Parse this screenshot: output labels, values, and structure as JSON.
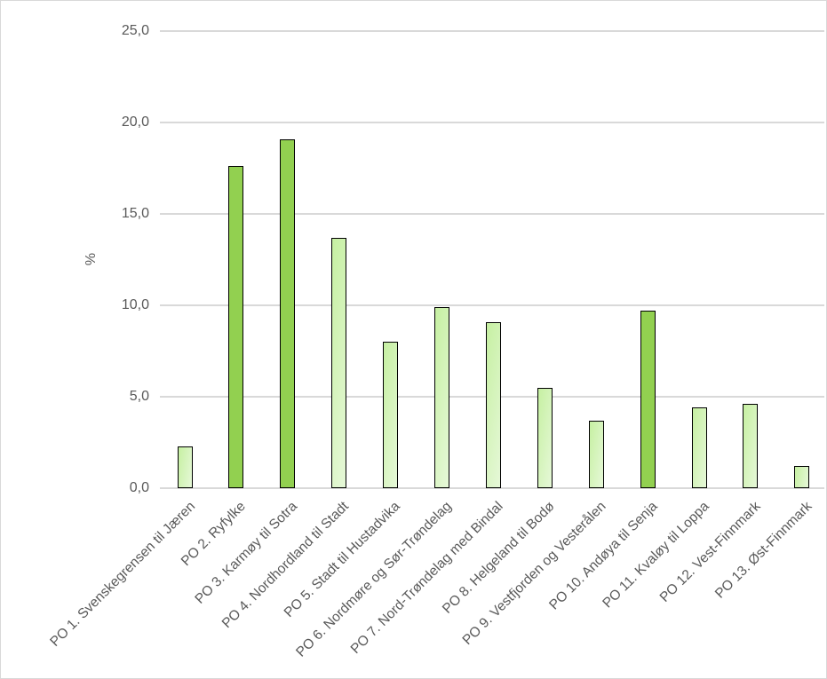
{
  "chart_data": {
    "type": "bar",
    "title": "",
    "xlabel": "",
    "ylabel": "%",
    "ylim": [
      0,
      25
    ],
    "yticks": [
      "0,0",
      "5,0",
      "10,0",
      "15,0",
      "20,0",
      "25,0"
    ],
    "grid": true,
    "legend": null,
    "categories": [
      "PO 1. Svenskegrensen til Jæren",
      "PO 2. Ryfylke",
      "PO 3. Karmøy til Sotra",
      "PO 4. Nordhordland til Stadt",
      "PO 5. Stadt til Hustadvika",
      "PO 6. Nordmøre og Sør-Trøndelag",
      "PO 7. Nord-Trøndelag med Bindal",
      "PO 8. Helgeland til Bodø",
      "PO 9. Vestfjorden og Vesterålen",
      "PO 10. Andøya til Senja",
      "PO 11. Kvaløy til Loppa",
      "PO 12. Vest-Finnmark",
      "PO 13. Øst-Finnmark"
    ],
    "values": [
      2.3,
      17.6,
      19.1,
      13.7,
      8.0,
      9.9,
      9.1,
      5.5,
      3.7,
      9.7,
      4.4,
      4.6,
      1.2
    ],
    "highlight": [
      false,
      true,
      true,
      false,
      false,
      false,
      false,
      false,
      false,
      true,
      false,
      false,
      false
    ]
  },
  "colors": {
    "highlight_fill": "#92d050",
    "normal_fill_start": "#c6f0a2",
    "normal_fill_end": "#e6f8d8",
    "bar_border": "#000000",
    "gridline": "#d9d9d9",
    "text": "#595959"
  }
}
